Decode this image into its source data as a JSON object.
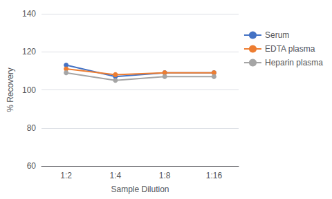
{
  "chart_data": {
    "type": "line",
    "categories": [
      "1:2",
      "1:4",
      "1:8",
      "1:16"
    ],
    "series": [
      {
        "name": "Serum",
        "color": "#4472C4",
        "marker": "circle",
        "values": [
          113,
          107,
          109,
          109
        ]
      },
      {
        "name": "EDTA plasma",
        "color": "#ED7D31",
        "marker": "circle",
        "values": [
          111,
          108,
          109,
          109
        ]
      },
      {
        "name": "Heparin plasma",
        "color": "#A5A5A5",
        "marker": "circle",
        "values": [
          109,
          105,
          107,
          107
        ]
      }
    ],
    "xlabel": "Sample Dilution",
    "ylabel": "% Recovery",
    "ylim": [
      60,
      140
    ],
    "yticks": [
      60,
      80,
      100,
      120,
      140
    ],
    "grid": true,
    "legend": "right"
  }
}
